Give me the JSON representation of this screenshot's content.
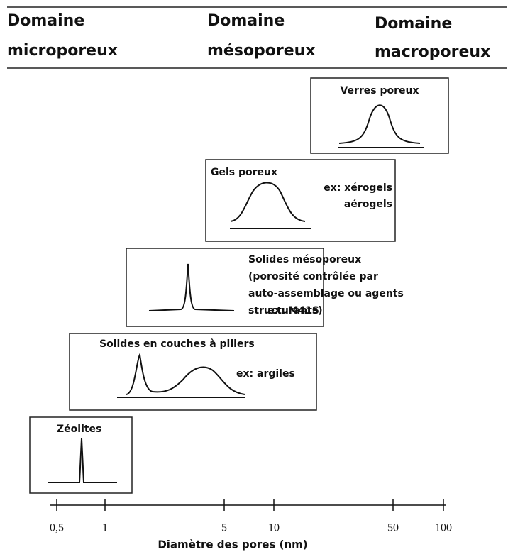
{
  "header": {
    "columns": [
      {
        "lines": [
          "Domaine",
          "microporeux"
        ]
      },
      {
        "lines": [
          "Domaine",
          "mésoporeux"
        ]
      },
      {
        "lines": [
          "Domaine",
          "macroporeux"
        ]
      }
    ]
  },
  "boxes": [
    {
      "title": "Verres poreux"
    },
    {
      "title": "Gels poreux",
      "examples": [
        "ex: xérogels",
        "aérogels"
      ]
    },
    {
      "lines": [
        "Solides mésoporeux",
        "(porosité contrôlée par",
        "auto-assemblage ou agents",
        "structurants)"
      ],
      "example": "ex: M41S"
    },
    {
      "title": "Solides en couches à piliers",
      "example": "ex: argiles"
    },
    {
      "title": "Zéolites"
    }
  ],
  "axis": {
    "ticks": [
      "0,5",
      "1",
      "5",
      "10",
      "50",
      "100"
    ],
    "title": "Diamètre des pores (nm)"
  }
}
